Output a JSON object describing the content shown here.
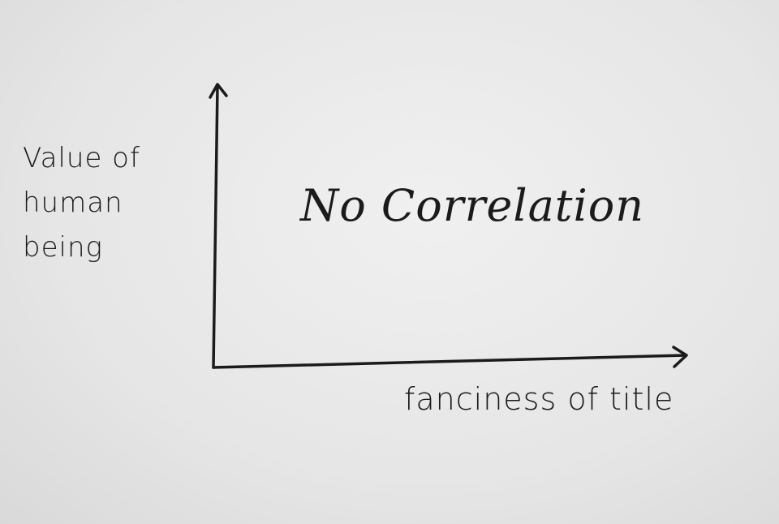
{
  "chart_data": {
    "type": "scatter",
    "title": "No Correlation",
    "x_label": "fanciness of title",
    "y_label": "Value of human being"
  }
}
